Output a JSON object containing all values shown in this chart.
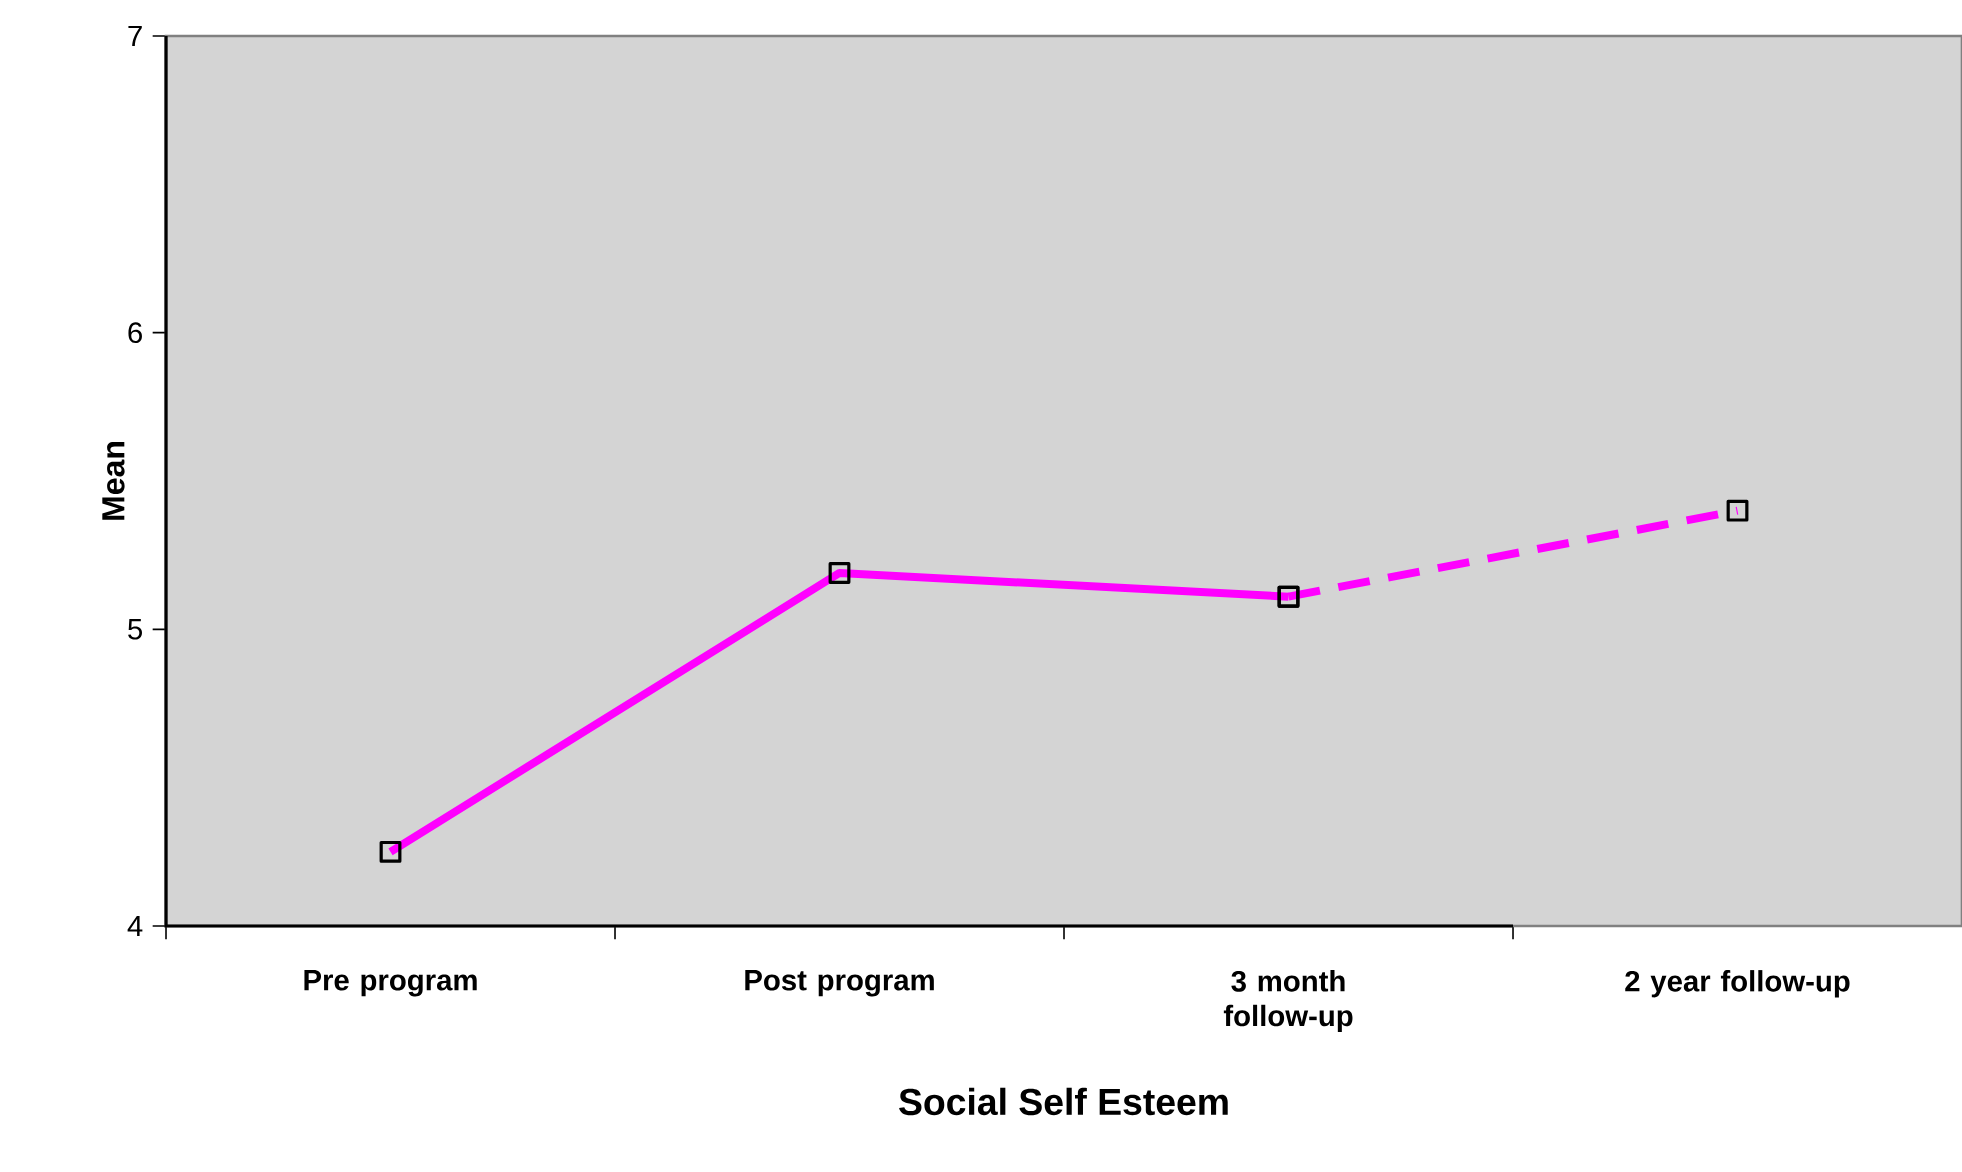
{
  "chart_data": {
    "type": "line",
    "xlabel": "Social Self Esteem",
    "ylabel": "Mean",
    "categories": [
      "Pre program",
      "Post program",
      "3 month follow-up",
      "2 year follow-up"
    ],
    "series": [
      {
        "color": "#ff00ff",
        "line_style": "solid",
        "values": [
          4.25,
          5.19,
          5.11,
          null
        ]
      },
      {
        "color": "#ff00ff",
        "line_style": "dashed",
        "values": [
          null,
          null,
          5.11,
          5.4
        ]
      }
    ],
    "marker": "square",
    "ylim": [
      4,
      7
    ],
    "yticks": [
      4,
      5,
      6,
      7
    ]
  }
}
